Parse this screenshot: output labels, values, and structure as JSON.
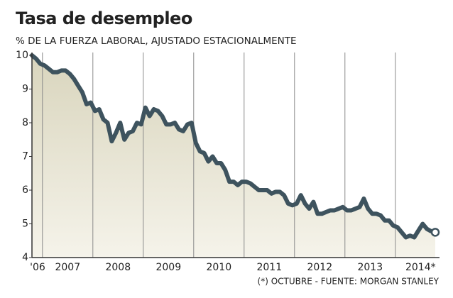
{
  "chart_data": {
    "type": "area-line",
    "title": "Tasa de desempleo",
    "subtitle": "% DE LA FUERZA LABORAL, AJUSTADO ESTACIONALMENTE",
    "note": "(*) OCTUBRE - FUENTE: MORGAN STANLEY",
    "categories": [
      "'06",
      null,
      null,
      null,
      null,
      null,
      null,
      null,
      null,
      "2007",
      null,
      null,
      null,
      null,
      null,
      null,
      null,
      null,
      null,
      null,
      null,
      "2008",
      null,
      null,
      null,
      null,
      null,
      null,
      null,
      null,
      null,
      null,
      null,
      "2009",
      null,
      null,
      null,
      null,
      null,
      null,
      null,
      null,
      null,
      null,
      null,
      "2010",
      null,
      null,
      null,
      null,
      null,
      null,
      null,
      null,
      null,
      null,
      null,
      "2011",
      null,
      null,
      null,
      null,
      null,
      null,
      null,
      null,
      null,
      null,
      null,
      "2012",
      null,
      null,
      null,
      null,
      null,
      null,
      null,
      null,
      null,
      null,
      null,
      "2013",
      null,
      null,
      null,
      null,
      null,
      null,
      null,
      null,
      null,
      null,
      null,
      "2014*",
      null,
      null,
      null
    ],
    "values": [
      10.0,
      9.9,
      9.75,
      9.7,
      9.6,
      9.5,
      9.5,
      9.55,
      9.55,
      9.45,
      9.3,
      9.1,
      8.9,
      8.55,
      8.6,
      8.35,
      8.4,
      8.1,
      8.0,
      7.45,
      7.7,
      8.0,
      7.5,
      7.7,
      7.75,
      8.0,
      7.95,
      8.45,
      8.2,
      8.4,
      8.35,
      8.2,
      7.95,
      7.95,
      8.0,
      7.8,
      7.75,
      7.95,
      8.0,
      7.4,
      7.15,
      7.1,
      6.85,
      7.0,
      6.8,
      6.8,
      6.6,
      6.25,
      6.25,
      6.15,
      6.25,
      6.25,
      6.2,
      6.1,
      6.0,
      6.0,
      6.0,
      5.9,
      5.95,
      5.95,
      5.85,
      5.6,
      5.55,
      5.6,
      5.85,
      5.6,
      5.45,
      5.65,
      5.3,
      5.3,
      5.35,
      5.4,
      5.4,
      5.45,
      5.5,
      5.4,
      5.4,
      5.45,
      5.5,
      5.75,
      5.45,
      5.3,
      5.3,
      5.25,
      5.1,
      5.1,
      4.95,
      4.9,
      4.75,
      4.6,
      4.65,
      4.6,
      4.8,
      5.0,
      4.85,
      4.78,
      4.75
    ],
    "color": "#3e535e",
    "area_color": "#dedac4",
    "ylim": [
      4,
      10
    ],
    "yticks": [
      4,
      5,
      6,
      7,
      8,
      9,
      10
    ],
    "year_dividers": true,
    "last_marker": true
  }
}
